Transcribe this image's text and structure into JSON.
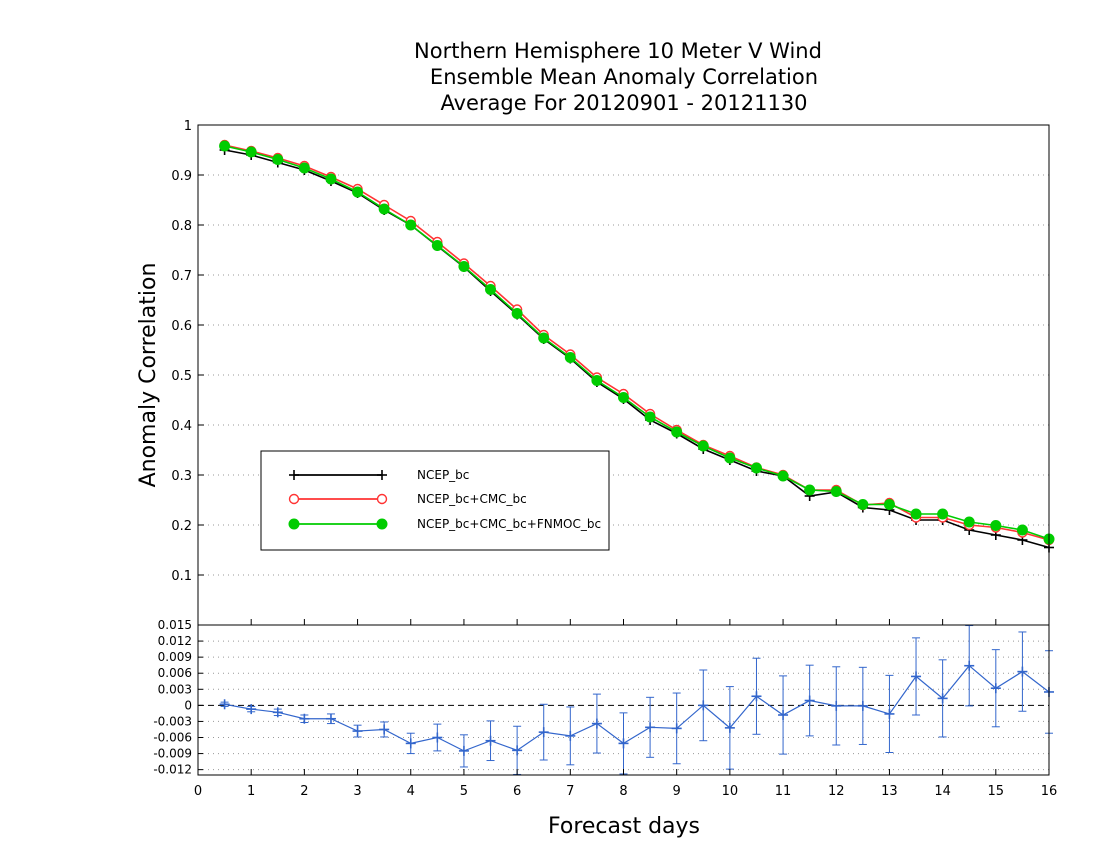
{
  "chart_data": [
    {
      "type": "line",
      "title": [
        "Northern Hemisphere 10 Meter V Wind",
        "Ensemble Mean Anomaly Correlation",
        "Average For 20120901 - 20121130"
      ],
      "xlabel": "Forecast days",
      "ylabel": "Anomaly Correlation",
      "xlim": [
        0,
        16
      ],
      "ylim": [
        0,
        1
      ],
      "xticks": [
        "0",
        "1",
        "2",
        "3",
        "4",
        "5",
        "6",
        "7",
        "8",
        "9",
        "10",
        "11",
        "12",
        "13",
        "14",
        "15",
        "16"
      ],
      "yticks": [
        "0.1",
        "0.2",
        "0.3",
        "0.4",
        "0.5",
        "0.6",
        "0.7",
        "0.8",
        "0.9",
        "1"
      ],
      "grid": true,
      "legend_position": "lower-left",
      "x": [
        0.5,
        1,
        1.5,
        2,
        2.5,
        3,
        3.5,
        4,
        4.5,
        5,
        5.5,
        6,
        6.5,
        7,
        7.5,
        8,
        8.5,
        9,
        9.5,
        10,
        10.5,
        11,
        11.5,
        12,
        12.5,
        13,
        13.5,
        14,
        14.5,
        15,
        15.5,
        16
      ],
      "series": [
        {
          "name": "NCEP_bc",
          "color": "#000000",
          "marker": "plus",
          "values": [
            0.95,
            0.94,
            0.925,
            0.91,
            0.888,
            0.864,
            0.83,
            0.8,
            0.758,
            0.716,
            0.668,
            0.621,
            0.572,
            0.533,
            0.486,
            0.452,
            0.41,
            0.383,
            0.352,
            0.33,
            0.308,
            0.298,
            0.258,
            0.266,
            0.235,
            0.23,
            0.21,
            0.21,
            0.19,
            0.18,
            0.17,
            0.155
          ]
        },
        {
          "name": "NCEP_bc+CMC_bc",
          "color": "#ff3333",
          "marker": "open-circle",
          "values": [
            0.96,
            0.948,
            0.934,
            0.918,
            0.896,
            0.872,
            0.84,
            0.808,
            0.766,
            0.723,
            0.678,
            0.631,
            0.58,
            0.541,
            0.495,
            0.462,
            0.422,
            0.39,
            0.36,
            0.338,
            0.315,
            0.3,
            0.27,
            0.27,
            0.24,
            0.244,
            0.215,
            0.215,
            0.2,
            0.195,
            0.185,
            0.17
          ]
        },
        {
          "name": "NCEP_bc+CMC_bc+FNMOC_bc",
          "color": "#00cc00",
          "marker": "filled-circle",
          "values": [
            0.958,
            0.946,
            0.931,
            0.914,
            0.892,
            0.866,
            0.832,
            0.8,
            0.759,
            0.717,
            0.671,
            0.623,
            0.574,
            0.535,
            0.489,
            0.455,
            0.416,
            0.386,
            0.358,
            0.334,
            0.314,
            0.298,
            0.27,
            0.267,
            0.241,
            0.241,
            0.222,
            0.222,
            0.206,
            0.199,
            0.19,
            0.172
          ]
        }
      ]
    },
    {
      "type": "line",
      "xlabel": "Forecast days",
      "xlim": [
        0,
        16
      ],
      "ylim": [
        -0.013,
        0.015
      ],
      "yticks": [
        "0.015",
        "0.012",
        "0.009",
        "0.006",
        "0.003",
        "0",
        "-0.003",
        "-0.006",
        "-0.009",
        "-0.012"
      ],
      "grid": true,
      "zero_line": true,
      "x": [
        0.5,
        1,
        1.5,
        2,
        2.5,
        3,
        3.5,
        4,
        4.5,
        5,
        5.5,
        6,
        6.5,
        7,
        7.5,
        8,
        8.5,
        9,
        9.5,
        10,
        10.5,
        11,
        11.5,
        12,
        12.5,
        13,
        13.5,
        14,
        14.5,
        15,
        15.5,
        16
      ],
      "series": [
        {
          "color": "#3366cc",
          "marker": "plus",
          "values": [
            0.0002,
            -0.0007,
            -0.0013,
            -0.0025,
            -0.0025,
            -0.0048,
            -0.0045,
            -0.0071,
            -0.006,
            -0.0085,
            -0.0066,
            -0.0084,
            -0.005,
            -0.0057,
            -0.0034,
            -0.0071,
            -0.0041,
            -0.0043,
            0,
            -0.0042,
            0.0017,
            -0.0018,
            0.0009,
            -0.0001,
            -0.0001,
            -0.0016,
            0.0054,
            0.0013,
            0.0074,
            0.0032,
            0.0063,
            0.0025
          ],
          "error": [
            0.0004,
            0.0005,
            0.0006,
            0.0007,
            0.0009,
            0.0011,
            0.0014,
            0.0019,
            0.0025,
            0.003,
            0.0037,
            0.0045,
            0.0052,
            0.0054,
            0.0055,
            0.0057,
            0.0056,
            0.0066,
            0.0066,
            0.0077,
            0.0071,
            0.0073,
            0.0066,
            0.0073,
            0.0072,
            0.0072,
            0.0072,
            0.0072,
            0.0075,
            0.0072,
            0.0074,
            0.0077
          ]
        }
      ]
    }
  ]
}
